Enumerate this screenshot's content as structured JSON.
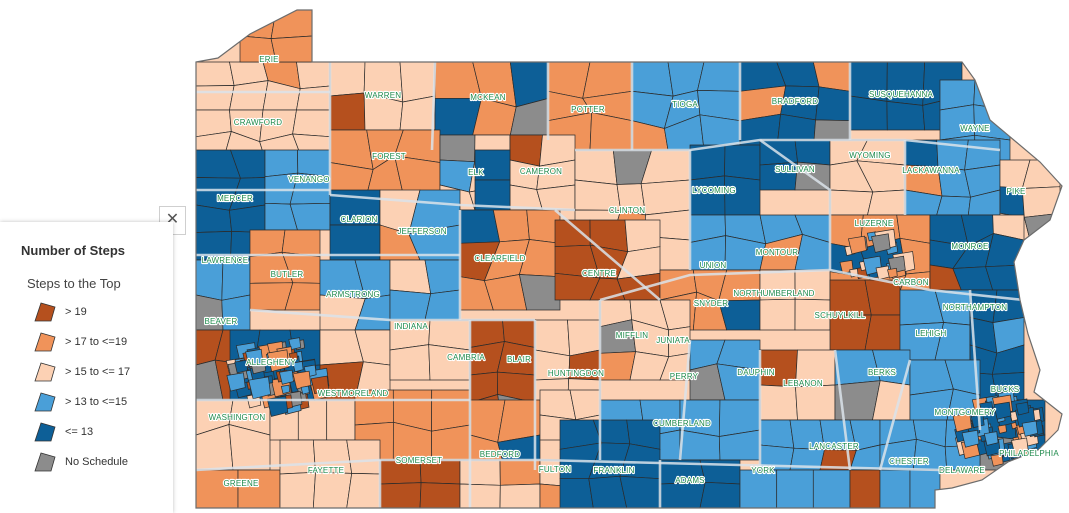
{
  "map": {
    "colors": {
      "gt19": "#b5501e",
      "gt17": "#f0935a",
      "gt15": "#fcd1b4",
      "gt13": "#4a9fd8",
      "le13": "#0d5f97",
      "none": "#8c8c8c"
    },
    "counties": [
      {
        "name": "ERIE"
      },
      {
        "name": "WARREN"
      },
      {
        "name": "MCKEAN"
      },
      {
        "name": "POTTER"
      },
      {
        "name": "TIOGA"
      },
      {
        "name": "BRADFORD"
      },
      {
        "name": "SUSQUEHANNA"
      },
      {
        "name": "WAYNE"
      },
      {
        "name": "CRAWFORD"
      },
      {
        "name": "FOREST"
      },
      {
        "name": "ELK"
      },
      {
        "name": "CAMERON"
      },
      {
        "name": "SULLIVAN"
      },
      {
        "name": "WYOMING"
      },
      {
        "name": "LACKAWANNA"
      },
      {
        "name": "VENANGO"
      },
      {
        "name": "LYCOMING"
      },
      {
        "name": "PIKE"
      },
      {
        "name": "MERCER"
      },
      {
        "name": "CLARION"
      },
      {
        "name": "CLINTON"
      },
      {
        "name": "JEFFERSON"
      },
      {
        "name": "LUZERNE"
      },
      {
        "name": "MONROE"
      },
      {
        "name": "LAWRENCE"
      },
      {
        "name": "CLEARFIELD"
      },
      {
        "name": "MONTOUR"
      },
      {
        "name": "UNION"
      },
      {
        "name": "CENTRE"
      },
      {
        "name": "BUTLER"
      },
      {
        "name": "CARBON"
      },
      {
        "name": "ARMSTRONG"
      },
      {
        "name": "NORTHUMBERLAND"
      },
      {
        "name": "NORTHAMPTON"
      },
      {
        "name": "BEAVER"
      },
      {
        "name": "SNYDER"
      },
      {
        "name": "SCHUYLKILL"
      },
      {
        "name": "INDIANA"
      },
      {
        "name": "MIFFLIN"
      },
      {
        "name": "LEHIGH"
      },
      {
        "name": "JUNIATA"
      },
      {
        "name": "ALLEGHENY"
      },
      {
        "name": "CAMBRIA"
      },
      {
        "name": "BLAIR"
      },
      {
        "name": "HUNTINGDON"
      },
      {
        "name": "DAUPHIN"
      },
      {
        "name": "PERRY"
      },
      {
        "name": "BERKS"
      },
      {
        "name": "BUCKS"
      },
      {
        "name": "WESTMORELAND"
      },
      {
        "name": "LEBANON"
      },
      {
        "name": "MONTGOMERY"
      },
      {
        "name": "WASHINGTON"
      },
      {
        "name": "CUMBERLAND"
      },
      {
        "name": "LANCASTER"
      },
      {
        "name": "PHILADELPHIA"
      },
      {
        "name": "BEDFORD"
      },
      {
        "name": "SOMERSET"
      },
      {
        "name": "FAYETTE"
      },
      {
        "name": "FULTON"
      },
      {
        "name": "FRANKLIN"
      },
      {
        "name": "YORK"
      },
      {
        "name": "CHESTER"
      },
      {
        "name": "DELAWARE"
      },
      {
        "name": "ADAMS"
      },
      {
        "name": "GREENE"
      }
    ]
  },
  "legend": {
    "title": "Number of Steps",
    "subtitle": "Steps to the Top",
    "close_glyph": "✕",
    "items": [
      {
        "label": "> 19",
        "key": "gt19"
      },
      {
        "label": "> 17 to <=19",
        "key": "gt17"
      },
      {
        "label": "> 15 to <= 17",
        "key": "gt15"
      },
      {
        "label": "> 13 to <=15",
        "key": "gt13"
      },
      {
        "label": "<= 13",
        "key": "le13"
      },
      {
        "label": "No Schedule",
        "key": "none"
      }
    ]
  }
}
